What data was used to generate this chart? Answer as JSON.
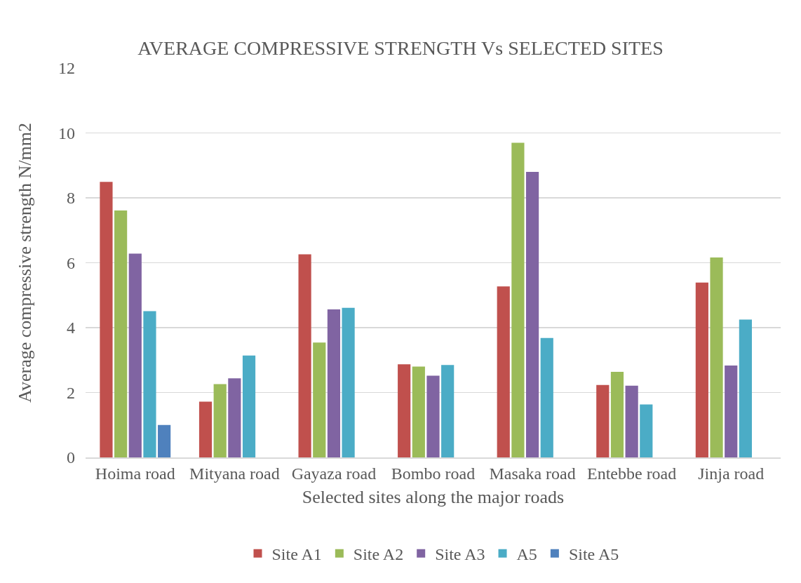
{
  "chart_data": {
    "type": "bar",
    "title": "AVERAGE COMPRESSIVE STRENGTH Vs SELECTED SITES",
    "xlabel": "Selected sites along the major roads",
    "ylabel": "Average compressive strength N/mm2",
    "categories": [
      "Hoima road",
      "Mityana road",
      "Gayaza road",
      "Bombo road",
      "Masaka road",
      "Entebbe road",
      "Jinja road"
    ],
    "series": [
      {
        "name": "Site A1",
        "color": "#c0504d",
        "values": [
          8.49,
          1.72,
          6.26,
          2.87,
          5.27,
          2.23,
          5.39
        ]
      },
      {
        "name": "Site A2",
        "color": "#9bbb59",
        "values": [
          7.61,
          2.26,
          3.54,
          2.8,
          9.7,
          2.64,
          6.16
        ]
      },
      {
        "name": "Site A3",
        "color": "#8064a2",
        "values": [
          6.28,
          2.44,
          4.56,
          2.52,
          8.8,
          2.21,
          2.83
        ]
      },
      {
        "name": "A5",
        "color": "#4bacc6",
        "values": [
          4.51,
          3.14,
          4.61,
          2.85,
          3.68,
          1.63,
          4.25
        ]
      },
      {
        "name": "Site A5",
        "color": "#4f81bd",
        "values": [
          1.0,
          null,
          null,
          null,
          null,
          null,
          null
        ]
      }
    ],
    "ylim": [
      0,
      12
    ],
    "yticks": [
      0,
      2,
      4,
      6,
      8,
      10,
      12
    ],
    "grid": "y",
    "legend": "bottom"
  }
}
